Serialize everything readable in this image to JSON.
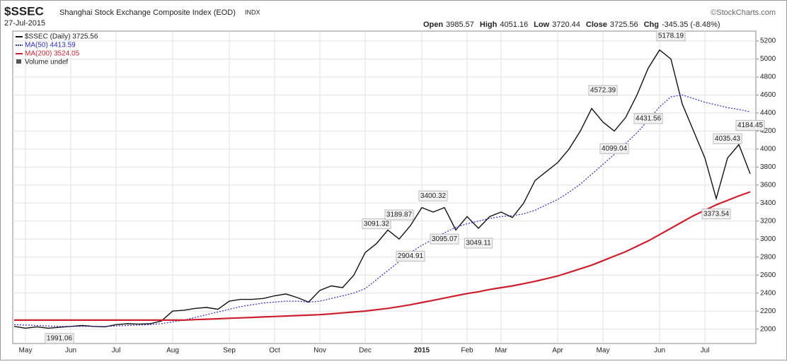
{
  "chart_data": {
    "type": "line",
    "title": "$SSEC",
    "subtitle": "Shanghai Stock Exchange Composite Index (EOD)",
    "exchange": "INDX",
    "date": "27-Jul-2015",
    "source": "©StockCharts.com",
    "stats": [
      {
        "label": "Open",
        "value": 3985.57
      },
      {
        "label": "High",
        "value": 4051.16
      },
      {
        "label": "Low",
        "value": 3720.44
      },
      {
        "label": "Close",
        "value": 3725.56
      },
      {
        "label": "Chg",
        "value": "-345.35 (-8.48%)"
      }
    ],
    "volume_note": "Volume undef",
    "categories": [
      null,
      "May",
      null,
      null,
      null,
      "Jun",
      null,
      null,
      null,
      "Jul",
      null,
      null,
      null,
      null,
      "Aug",
      null,
      null,
      null,
      null,
      "Sep",
      null,
      null,
      null,
      "Oct",
      null,
      null,
      null,
      "Nov",
      null,
      null,
      null,
      "Dec",
      null,
      null,
      null,
      null,
      "2015",
      null,
      null,
      null,
      "Feb",
      null,
      null,
      "Mar",
      null,
      null,
      null,
      null,
      "Apr",
      null,
      null,
      null,
      "May",
      null,
      null,
      null,
      null,
      "Jun",
      null,
      null,
      null,
      "Jul",
      null,
      null,
      null,
      null
    ],
    "series": [
      {
        "name": "$SSEC (Daily) 3725.56",
        "color": "#111111",
        "values": [
          2030,
          2010,
          2025,
          2010,
          2020,
          2030,
          2040,
          2030,
          2025,
          2050,
          2060,
          2055,
          2060,
          2090,
          2200,
          2210,
          2230,
          2240,
          2220,
          2310,
          2330,
          2330,
          2340,
          2370,
          2390,
          2350,
          2300,
          2430,
          2480,
          2460,
          2600,
          2850,
          2950,
          3100,
          3000,
          3150,
          3350,
          3300,
          3350,
          3100,
          3250,
          3120,
          3250,
          3300,
          3240,
          3400,
          3650,
          3750,
          3850,
          4000,
          4200,
          4450,
          4300,
          4200,
          4350,
          4600,
          4900,
          5100,
          5000,
          4500,
          4200,
          3900,
          3450,
          3900,
          4050,
          3725
        ]
      },
      {
        "name": "MA(50) 4413.59",
        "color": "#2b2bb8",
        "values": [
          2050,
          2045,
          2040,
          2035,
          2030,
          2030,
          2030,
          2030,
          2030,
          2035,
          2040,
          2045,
          2050,
          2060,
          2080,
          2100,
          2130,
          2160,
          2190,
          2220,
          2250,
          2270,
          2290,
          2300,
          2310,
          2310,
          2300,
          2310,
          2340,
          2370,
          2400,
          2450,
          2550,
          2650,
          2750,
          2850,
          2930,
          3000,
          3070,
          3130,
          3170,
          3200,
          3230,
          3250,
          3260,
          3280,
          3320,
          3380,
          3440,
          3520,
          3610,
          3720,
          3830,
          3940,
          4060,
          4180,
          4320,
          4470,
          4580,
          4600,
          4560,
          4520,
          4490,
          4460,
          4440,
          4413.59
        ]
      },
      {
        "name": "MA(200) 3524.05",
        "color": "#cc1f2f",
        "values": [
          2100,
          2100,
          2100,
          2100,
          2100,
          2100,
          2100,
          2100,
          2100,
          2100,
          2100,
          2100,
          2100,
          2100,
          2100,
          2100,
          2105,
          2110,
          2115,
          2120,
          2125,
          2130,
          2135,
          2140,
          2145,
          2150,
          2155,
          2160,
          2170,
          2180,
          2190,
          2200,
          2215,
          2230,
          2250,
          2270,
          2295,
          2320,
          2345,
          2370,
          2395,
          2415,
          2440,
          2460,
          2480,
          2505,
          2530,
          2560,
          2590,
          2630,
          2670,
          2710,
          2760,
          2810,
          2860,
          2920,
          2980,
          3050,
          3120,
          3190,
          3260,
          3320,
          3380,
          3430,
          3480,
          3524.05
        ]
      }
    ],
    "peak_labels": [
      null,
      null,
      null,
      null,
      1991.06,
      null,
      null,
      null,
      null,
      null,
      null,
      null,
      null,
      null,
      null,
      null,
      null,
      null,
      null,
      null,
      null,
      null,
      null,
      null,
      null,
      null,
      null,
      null,
      null,
      null,
      null,
      null,
      3091.32,
      null,
      3189.87,
      2904.91,
      null,
      3400.32,
      3095.07,
      null,
      null,
      3049.11,
      null,
      null,
      null,
      null,
      null,
      null,
      null,
      null,
      null,
      null,
      4572.39,
      4099.04,
      null,
      null,
      4431.56,
      null,
      5178.19,
      null,
      null,
      null,
      3373.54,
      4035.43,
      null,
      4184.45
    ],
    "ylim": [
      1840,
      5310
    ],
    "yticks": [
      2000,
      2200,
      2400,
      2600,
      2800,
      3000,
      3200,
      3400,
      3600,
      3800,
      4000,
      4200,
      4400,
      4600,
      4800,
      5000,
      5200
    ],
    "grid": true
  }
}
